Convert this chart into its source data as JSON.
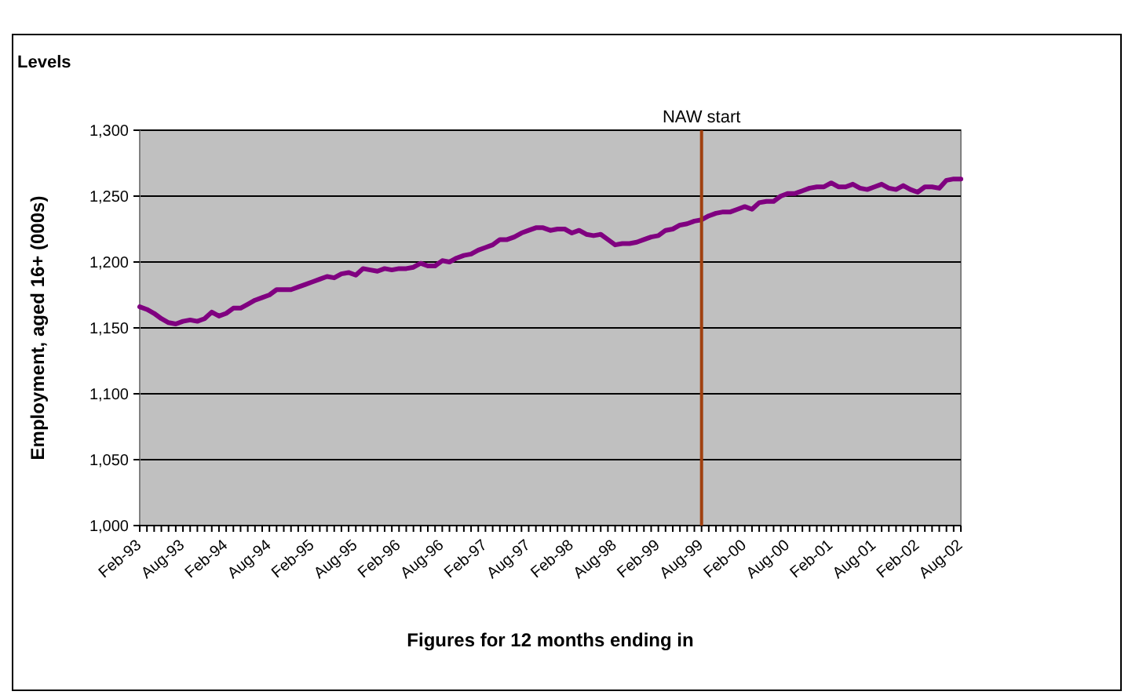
{
  "chart_data": {
    "type": "line",
    "subtitle": "Levels",
    "xlabel": "Figures for 12 months ending in",
    "ylabel": "Employment, aged 16+ (000s)",
    "categories": [
      "Feb-93",
      null,
      null,
      null,
      null,
      null,
      "Aug-93",
      null,
      null,
      null,
      null,
      null,
      "Feb-94",
      null,
      null,
      null,
      null,
      null,
      "Aug-94",
      null,
      null,
      null,
      null,
      null,
      "Feb-95",
      null,
      null,
      null,
      null,
      null,
      "Aug-95",
      null,
      null,
      null,
      null,
      null,
      "Feb-96",
      null,
      null,
      null,
      null,
      null,
      "Aug-96",
      null,
      null,
      null,
      null,
      null,
      "Feb-97",
      null,
      null,
      null,
      null,
      null,
      "Aug-97",
      null,
      null,
      null,
      null,
      null,
      "Feb-98",
      null,
      null,
      null,
      null,
      null,
      "Aug-98",
      null,
      null,
      null,
      null,
      null,
      "Feb-99",
      null,
      null,
      null,
      null,
      null,
      "Aug-99",
      null,
      null,
      null,
      null,
      null,
      "Feb-00",
      null,
      null,
      null,
      null,
      null,
      "Aug-00",
      null,
      null,
      null,
      null,
      null,
      "Feb-01",
      null,
      null,
      null,
      null,
      null,
      "Aug-01",
      null,
      null,
      null,
      null,
      null,
      "Feb-02",
      null,
      null,
      null,
      null,
      null,
      "Aug-02"
    ],
    "series": [
      {
        "color": "#800080",
        "values": [
          1166,
          1164,
          1161,
          1157,
          1154,
          1153,
          1155,
          1156,
          1155,
          1157,
          1162,
          1159,
          1161,
          1165,
          1165,
          1168,
          1171,
          1173,
          1175,
          1179,
          1179,
          1179,
          1181,
          1183,
          1185,
          1187,
          1189,
          1188,
          1191,
          1192,
          1190,
          1195,
          1194,
          1193,
          1195,
          1194,
          1195,
          1195,
          1196,
          1199,
          1197,
          1197,
          1201,
          1200,
          1203,
          1205,
          1206,
          1209,
          1211,
          1213,
          1217,
          1217,
          1219,
          1222,
          1224,
          1226,
          1226,
          1224,
          1225,
          1225,
          1222,
          1224,
          1221,
          1220,
          1221,
          1217,
          1213,
          1214,
          1214,
          1215,
          1217,
          1219,
          1220,
          1224,
          1225,
          1228,
          1229,
          1231,
          1232,
          1235,
          1237,
          1238,
          1238,
          1240,
          1242,
          1240,
          1245,
          1246,
          1246,
          1250,
          1252,
          1252,
          1254,
          1256,
          1257,
          1257,
          1260,
          1257,
          1257,
          1259,
          1256,
          1255,
          1257,
          1259,
          1256,
          1255,
          1258,
          1255,
          1253,
          1257,
          1257,
          1256,
          1262,
          1263,
          1263
        ]
      }
    ],
    "ylim": [
      1000,
      1300
    ],
    "yticks": [
      {
        "value": 1000,
        "label": "1,000"
      },
      {
        "value": 1050,
        "label": "1,050"
      },
      {
        "value": 1100,
        "label": "1,100"
      },
      {
        "value": 1150,
        "label": "1,150"
      },
      {
        "value": 1200,
        "label": "1,200"
      },
      {
        "value": 1250,
        "label": "1,250"
      },
      {
        "value": 1300,
        "label": "1,300"
      }
    ],
    "grid": "y",
    "marker": "none",
    "line_style": "solid",
    "ref_lines": [
      {
        "axis": "x",
        "value": "Aug-99",
        "label": "NAW start",
        "color": "#a0400f"
      }
    ]
  }
}
